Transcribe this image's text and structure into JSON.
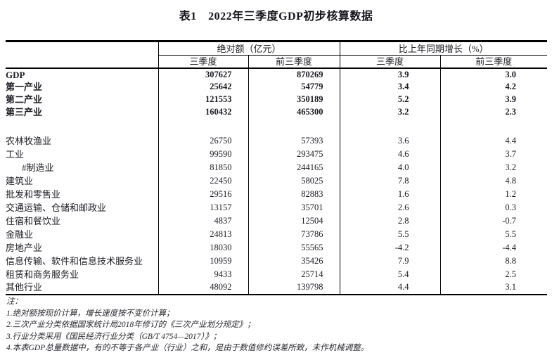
{
  "title": "表1　2022年三季度GDP初步核算数据",
  "colors": {
    "background": "#ffffff",
    "text": "#1c1c24",
    "border": "#000000"
  },
  "table": {
    "header": {
      "group_absolute": "绝对额（亿元）",
      "group_growth": "比上年同期增长（%）",
      "sub": [
        "三季度",
        "前三季度",
        "三季度",
        "前三季度"
      ]
    },
    "rows": [
      {
        "label": "GDP",
        "bold": true,
        "indent": false,
        "spacer": false,
        "values": [
          "307627",
          "870269",
          "3.9",
          "3.0"
        ]
      },
      {
        "label": "第一产业",
        "bold": true,
        "indent": false,
        "spacer": false,
        "values": [
          "25642",
          "54779",
          "3.4",
          "4.2"
        ]
      },
      {
        "label": "第二产业",
        "bold": true,
        "indent": false,
        "spacer": false,
        "values": [
          "121553",
          "350189",
          "5.2",
          "3.9"
        ]
      },
      {
        "label": "第三产业",
        "bold": true,
        "indent": false,
        "spacer": false,
        "values": [
          "160432",
          "465300",
          "3.2",
          "2.3"
        ]
      },
      {
        "label": "",
        "bold": false,
        "indent": false,
        "spacer": true,
        "values": [
          "",
          "",
          "",
          ""
        ]
      },
      {
        "label": "农林牧渔业",
        "bold": false,
        "indent": false,
        "spacer": false,
        "values": [
          "26750",
          "57393",
          "3.6",
          "4.4"
        ]
      },
      {
        "label": "工业",
        "bold": false,
        "indent": false,
        "spacer": false,
        "values": [
          "99590",
          "293475",
          "4.6",
          "3.7"
        ]
      },
      {
        "label": "#制造业",
        "bold": false,
        "indent": true,
        "spacer": false,
        "values": [
          "81850",
          "244165",
          "4.0",
          "3.2"
        ]
      },
      {
        "label": "建筑业",
        "bold": false,
        "indent": false,
        "spacer": false,
        "values": [
          "22450",
          "58025",
          "7.8",
          "4.8"
        ]
      },
      {
        "label": "批发和零售业",
        "bold": false,
        "indent": false,
        "spacer": false,
        "values": [
          "29516",
          "82883",
          "1.6",
          "1.2"
        ]
      },
      {
        "label": "交通运输、仓储和邮政业",
        "bold": false,
        "indent": false,
        "spacer": false,
        "values": [
          "13157",
          "35701",
          "2.6",
          "0.3"
        ]
      },
      {
        "label": "住宿和餐饮业",
        "bold": false,
        "indent": false,
        "spacer": false,
        "values": [
          "4837",
          "12504",
          "2.8",
          "-0.7"
        ]
      },
      {
        "label": "金融业",
        "bold": false,
        "indent": false,
        "spacer": false,
        "values": [
          "24813",
          "73786",
          "5.5",
          "5.5"
        ]
      },
      {
        "label": "房地产业",
        "bold": false,
        "indent": false,
        "spacer": false,
        "values": [
          "18030",
          "55565",
          "-4.2",
          "-4.4"
        ]
      },
      {
        "label": "信息传输、软件和信息技术服务业",
        "bold": false,
        "indent": false,
        "spacer": false,
        "values": [
          "10959",
          "35426",
          "7.9",
          "8.8"
        ]
      },
      {
        "label": "租赁和商务服务业",
        "bold": false,
        "indent": false,
        "spacer": false,
        "values": [
          "9433",
          "25714",
          "5.4",
          "2.5"
        ]
      },
      {
        "label": "其他行业",
        "bold": false,
        "indent": false,
        "spacer": false,
        "values": [
          "48092",
          "139798",
          "4.4",
          "3.1"
        ]
      }
    ]
  },
  "notes": [
    "注：",
    "1.绝对额按现价计算，增长速度按不变价计算；",
    "2.三次产业分类依据国家统计局2018年修订的《三次产业划分规定》；",
    "3.行业分类采用《国民经济行业分类（GB/T 4754—2017）》；",
    "4.本表GDP总量数据中，有的不等于各产业（行业）之和，是由于数值修约误差所致，未作机械调整。"
  ]
}
